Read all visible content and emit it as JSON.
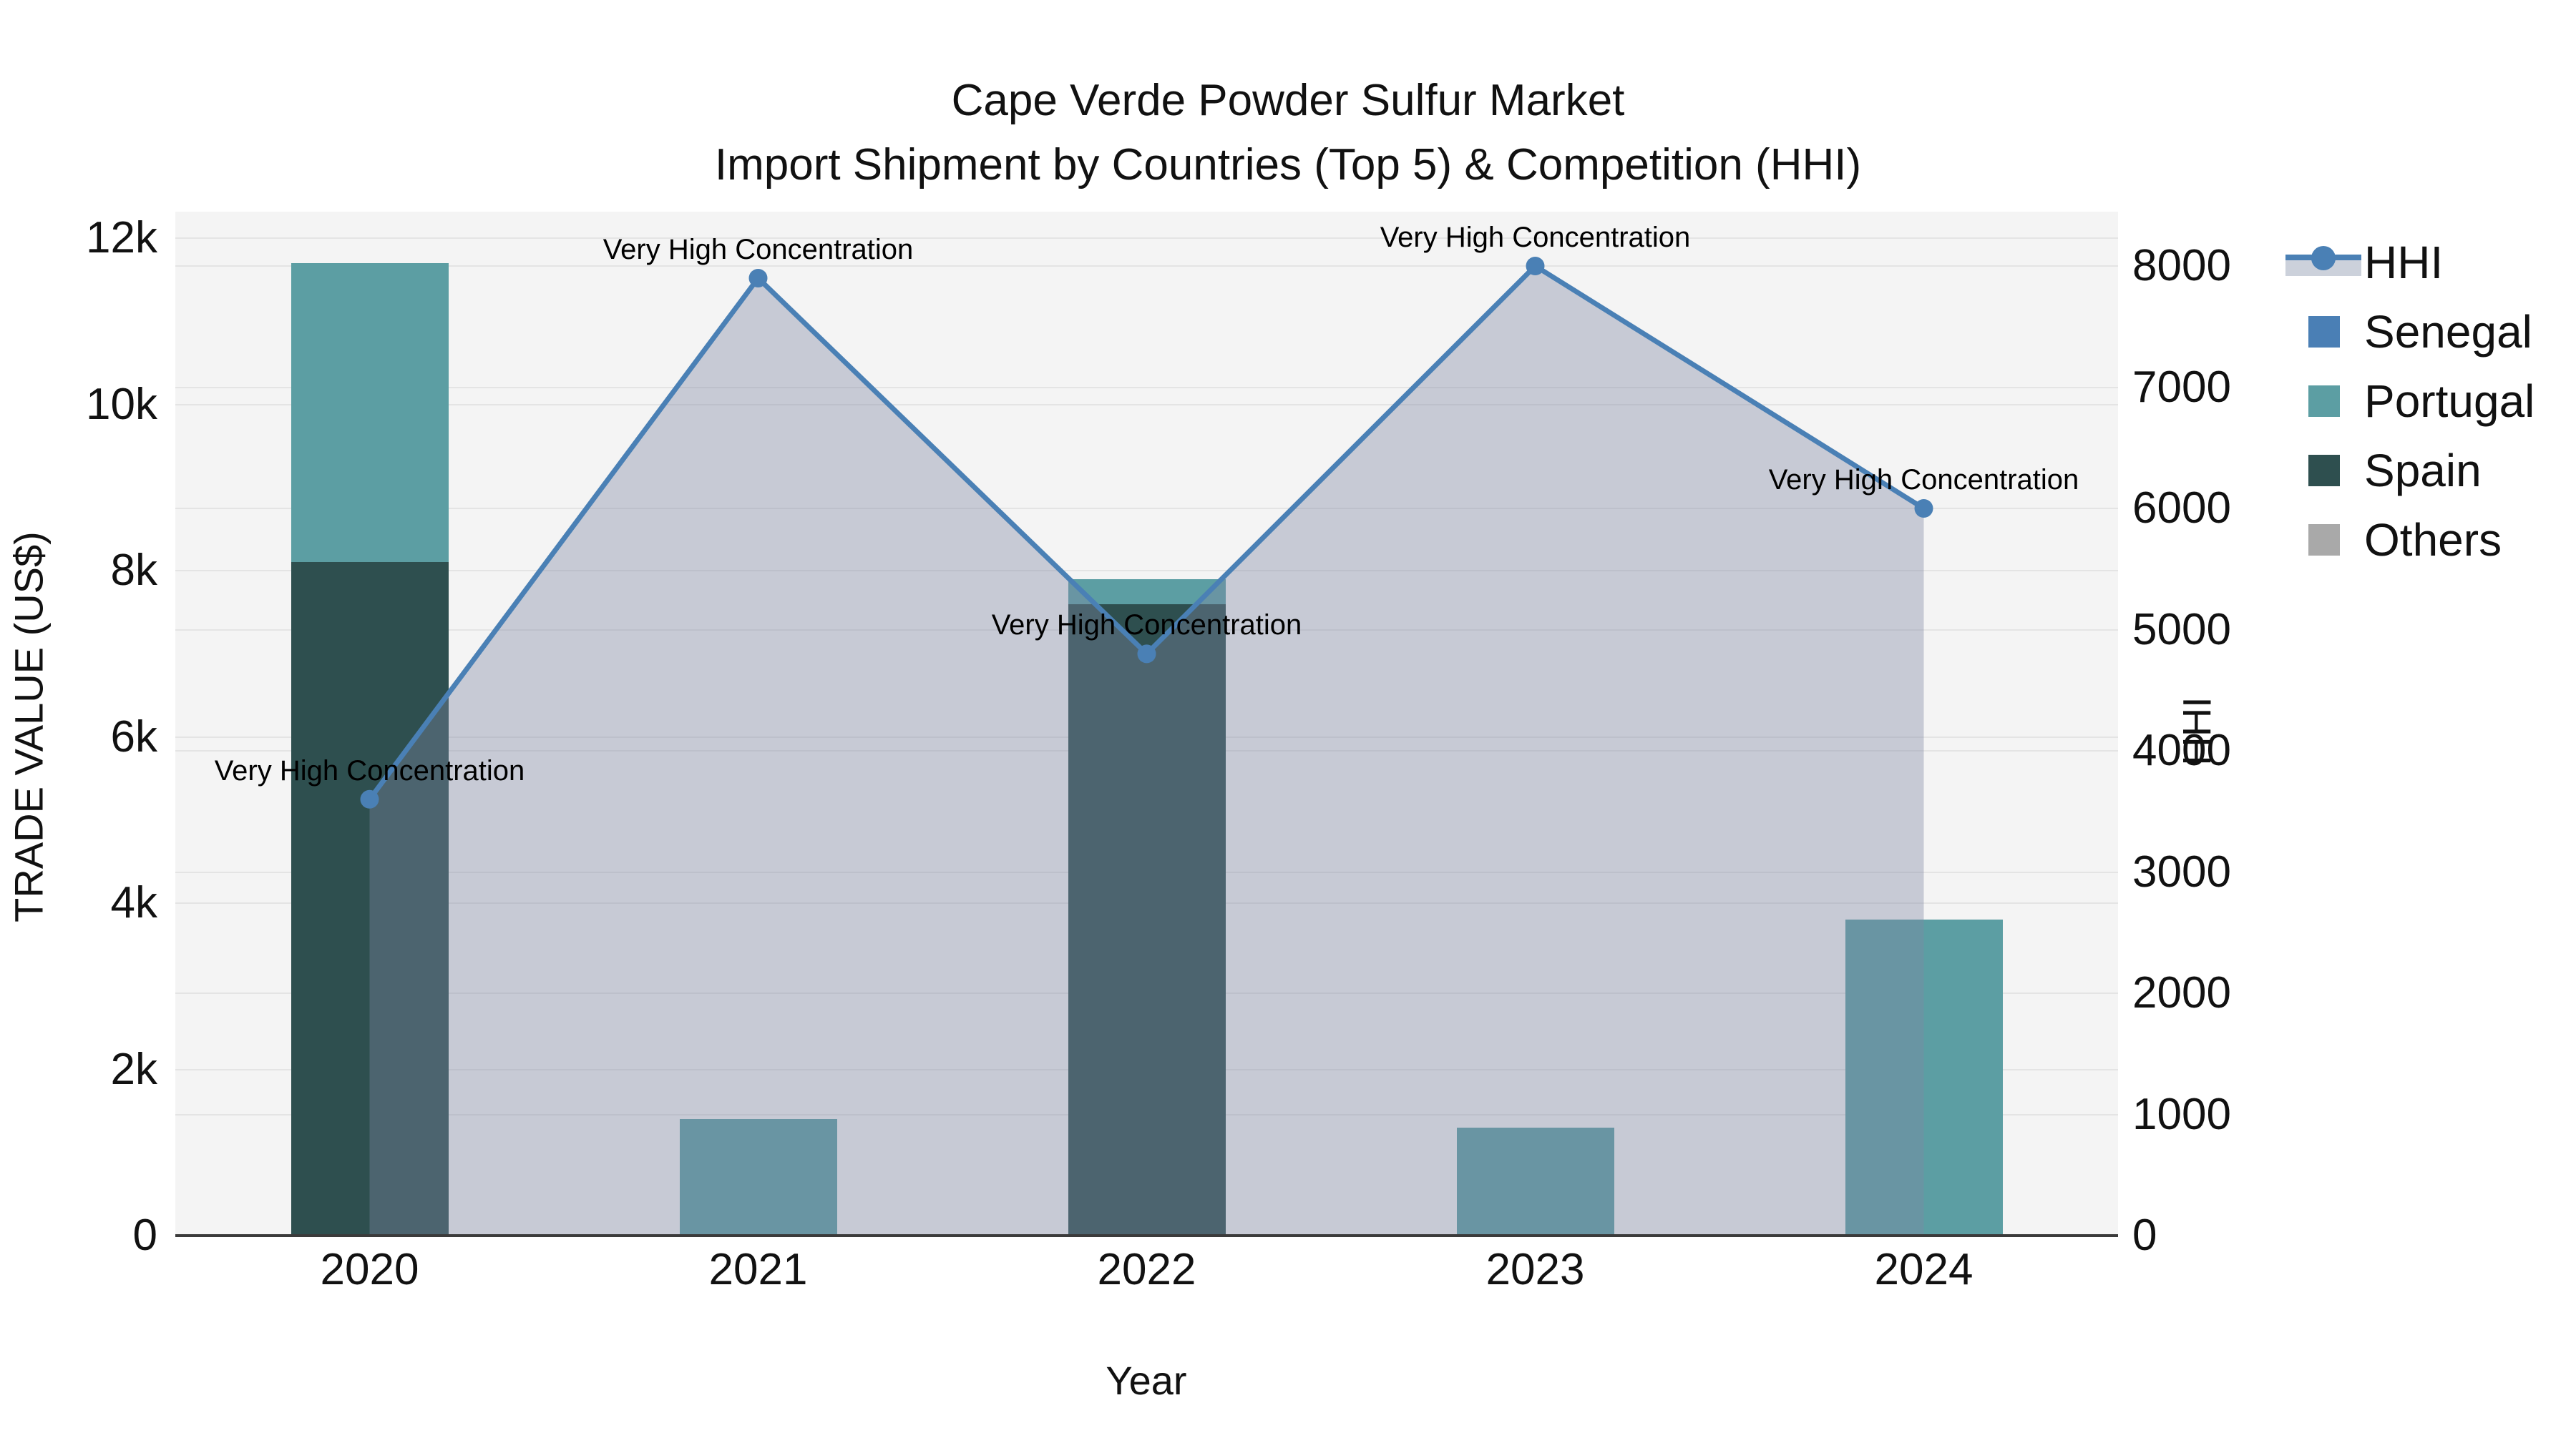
{
  "title": "Cape Verde Powder Sulfur Market",
  "subtitle": "Import Shipment by Countries (Top 5) & Competition (HHI)",
  "axes": {
    "x_label": "Year",
    "y_left_label": "TRADE VALUE (US$)",
    "y_right_label": "HHI",
    "y_left_ticks": [
      {
        "label": "0",
        "value": 0
      },
      {
        "label": "2k",
        "value": 2000
      },
      {
        "label": "4k",
        "value": 4000
      },
      {
        "label": "6k",
        "value": 6000
      },
      {
        "label": "8k",
        "value": 8000
      },
      {
        "label": "10k",
        "value": 10000
      },
      {
        "label": "12k",
        "value": 12000
      }
    ],
    "y_right_ticks": [
      {
        "label": "0",
        "value": 0
      },
      {
        "label": "1000",
        "value": 1000
      },
      {
        "label": "2000",
        "value": 2000
      },
      {
        "label": "3000",
        "value": 3000
      },
      {
        "label": "4000",
        "value": 4000
      },
      {
        "label": "5000",
        "value": 5000
      },
      {
        "label": "6000",
        "value": 6000
      },
      {
        "label": "7000",
        "value": 7000
      },
      {
        "label": "8000",
        "value": 8000
      }
    ]
  },
  "chart_data": {
    "type": "bar+line",
    "categories": [
      "2020",
      "2021",
      "2022",
      "2023",
      "2024"
    ],
    "y_left_axis": {
      "label": "TRADE VALUE (US$)",
      "min": 0,
      "max": 12000
    },
    "y_right_axis": {
      "label": "HHI",
      "min": 0,
      "max": 8000
    },
    "grid": "on",
    "legend_position": "right-outside-top",
    "stack_order": [
      "Spain",
      "Portugal",
      "Senegal",
      "Others"
    ],
    "series": [
      {
        "name": "Senegal",
        "type": "bar",
        "color": "#4a7fb5",
        "values": [
          0,
          0,
          0,
          0,
          0
        ]
      },
      {
        "name": "Portugal",
        "type": "bar",
        "color": "#5c9ea3",
        "values": [
          3600,
          1400,
          300,
          1300,
          3800
        ]
      },
      {
        "name": "Spain",
        "type": "bar",
        "color": "#2e4f4f",
        "values": [
          8100,
          0,
          7600,
          0,
          0
        ]
      },
      {
        "name": "Others",
        "type": "bar",
        "color": "#a9a9a9",
        "values": [
          0,
          0,
          0,
          0,
          0
        ]
      }
    ],
    "line_series": {
      "name": "HHI",
      "axis": "right",
      "color": "#4a80b5",
      "area_fill": "rgba(125,135,162,0.38)",
      "values": [
        3600,
        7900,
        4800,
        8000,
        6000
      ]
    },
    "annotations": [
      {
        "text": "Very High Concentration",
        "x_index": 0,
        "hhi_value": 3600
      },
      {
        "text": "Very High Concentration",
        "x_index": 1,
        "hhi_value": 7900
      },
      {
        "text": "Very High Concentration",
        "x_index": 2,
        "hhi_value": 4800
      },
      {
        "text": "Very High Concentration",
        "x_index": 3,
        "hhi_value": 8000
      },
      {
        "text": "Very High Concentration",
        "x_index": 4,
        "hhi_value": 6000
      }
    ]
  },
  "legend": {
    "items": [
      {
        "label": "HHI",
        "kind": "line",
        "color": "#4a80b5"
      },
      {
        "label": "Senegal",
        "kind": "swatch",
        "color": "#4a7fb5"
      },
      {
        "label": "Portugal",
        "kind": "swatch",
        "color": "#5c9ea3"
      },
      {
        "label": "Spain",
        "kind": "swatch",
        "color": "#2e4f4f"
      },
      {
        "label": "Others",
        "kind": "swatch",
        "color": "#a9a9a9"
      }
    ]
  },
  "colors": {
    "plot_background": "#f4f4f4",
    "figure_background": "#ffffff",
    "gridline": "#e4e4e4",
    "axis_line": "#3b3b3b",
    "text": "#111111"
  }
}
